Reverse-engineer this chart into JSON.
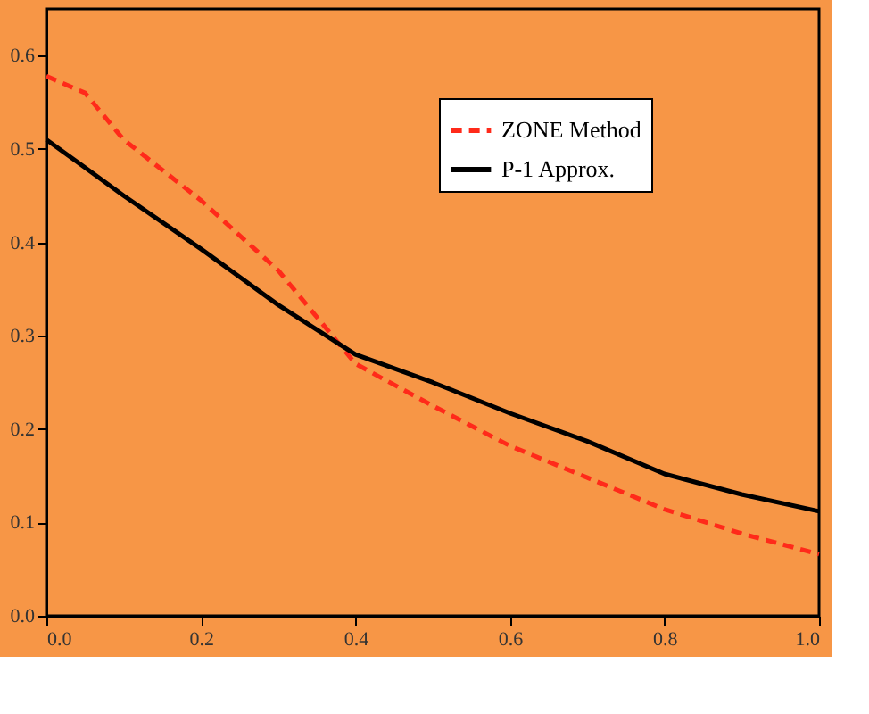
{
  "chart_data": {
    "type": "line",
    "x": [
      0,
      0.05,
      0.1,
      0.2,
      0.3,
      0.4,
      0.5,
      0.6,
      0.7,
      0.8,
      0.9,
      1.0
    ],
    "series": [
      {
        "name": "ZONE Method",
        "color": "#ff2a1a",
        "line_style": "dashed",
        "values": [
          0.578,
          0.56,
          0.51,
          0.445,
          0.37,
          0.27,
          0.225,
          0.182,
          0.148,
          0.114,
          0.088,
          0.066
        ]
      },
      {
        "name": "P-1 Approx.",
        "color": "#000000",
        "line_style": "solid",
        "values": [
          0.51,
          0.48,
          0.45,
          0.393,
          0.333,
          0.28,
          0.25,
          0.217,
          0.187,
          0.152,
          0.13,
          0.112
        ]
      }
    ],
    "xlim": [
      0,
      1.0
    ],
    "xticks": [
      {
        "value": 0,
        "label": "0.0"
      },
      0.2,
      0.4,
      0.6,
      0.8,
      {
        "value": 1.0,
        "label": "1.0"
      }
    ],
    "ylim": [
      0,
      0.65
    ],
    "yticks": [
      {
        "value": 0,
        "label": "0.0"
      },
      0.1,
      0.2,
      0.3,
      0.4,
      0.5,
      0.6
    ],
    "grid": false,
    "legend": "top right",
    "marker": "none"
  }
}
